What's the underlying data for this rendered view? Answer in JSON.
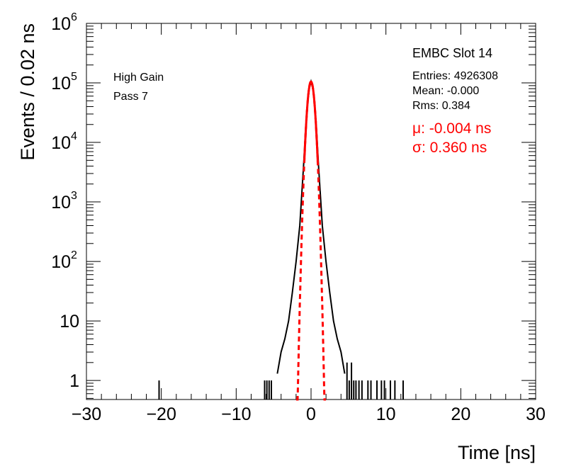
{
  "chart_data": {
    "type": "bar",
    "title": "EMBC Slot 14",
    "xlabel": "Time [ns]",
    "ylabel": "Events / 0.02 ns",
    "xlim": [
      -30,
      30
    ],
    "ylim": [
      0.5,
      1000000
    ],
    "y_scale": "log",
    "x_ticks": [
      -30,
      -20,
      -10,
      0,
      10,
      20,
      30
    ],
    "x_tick_labels": [
      "−30",
      "−20",
      "−10",
      "0",
      "10",
      "20",
      "30"
    ],
    "y_ticks": [
      {
        "value": 1,
        "base": "1",
        "exp": ""
      },
      {
        "value": 10,
        "base": "10",
        "exp": ""
      },
      {
        "value": 100,
        "base": "10",
        "exp": "2"
      },
      {
        "value": 1000,
        "base": "10",
        "exp": "3"
      },
      {
        "value": 10000,
        "base": "10",
        "exp": "4"
      },
      {
        "value": 100000,
        "base": "10",
        "exp": "5"
      },
      {
        "value": 1000000,
        "base": "10",
        "exp": "6"
      }
    ],
    "annotations": {
      "gain": "High Gain",
      "pass": "Pass 7"
    },
    "stats": {
      "entries": "Entries: 4926308",
      "mean": "Mean: -0.000",
      "rms": "Rms: 0.384"
    },
    "fit": {
      "mu_text": "μ: -0.004 ns",
      "sigma_text": "σ: 0.360 ns",
      "mu": -0.004,
      "sigma": 0.36,
      "amplitude": 105000,
      "color": "#ff0000"
    },
    "histogram": {
      "color": "#000000",
      "core_x": [
        -4.5,
        -4.0,
        -3.5,
        -3.0,
        -2.5,
        -2.0,
        -1.5,
        -1.0,
        -0.75,
        -0.5,
        -0.25,
        0.0,
        0.25,
        0.5,
        0.75,
        1.0,
        1.5,
        2.0,
        2.5,
        3.0,
        3.5,
        4.0,
        4.5
      ],
      "core_y": [
        1.3,
        3,
        5,
        10,
        30,
        100,
        400,
        4000,
        15000,
        40000,
        80000,
        105000,
        80000,
        40000,
        15000,
        4000,
        400,
        100,
        30,
        10,
        5,
        3,
        1.3
      ],
      "sparse_x": [
        -20.3,
        -6.2,
        -5.9,
        -5.6,
        -5.3,
        4.8,
        5.1,
        5.4,
        5.7,
        6.0,
        6.4,
        6.8,
        7.6,
        8.0,
        8.8,
        9.4,
        9.8,
        10.6,
        11.2,
        12.3
      ],
      "sparse_y": [
        1,
        1,
        1,
        1,
        1,
        2,
        1,
        2,
        1,
        1,
        1,
        1,
        1,
        1,
        1,
        1,
        1,
        1,
        1,
        1
      ]
    }
  }
}
